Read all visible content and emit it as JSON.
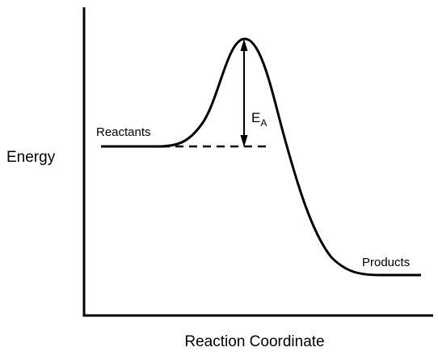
{
  "diagram": {
    "y_axis_label": "Energy",
    "x_axis_label": "Reaction Coordinate",
    "reactants_label": "Reactants",
    "products_label": "Products",
    "activation_energy": {
      "main": "E",
      "subscript": "A"
    }
  },
  "colors": {
    "ink": "#000000",
    "background": "#ffffff"
  }
}
